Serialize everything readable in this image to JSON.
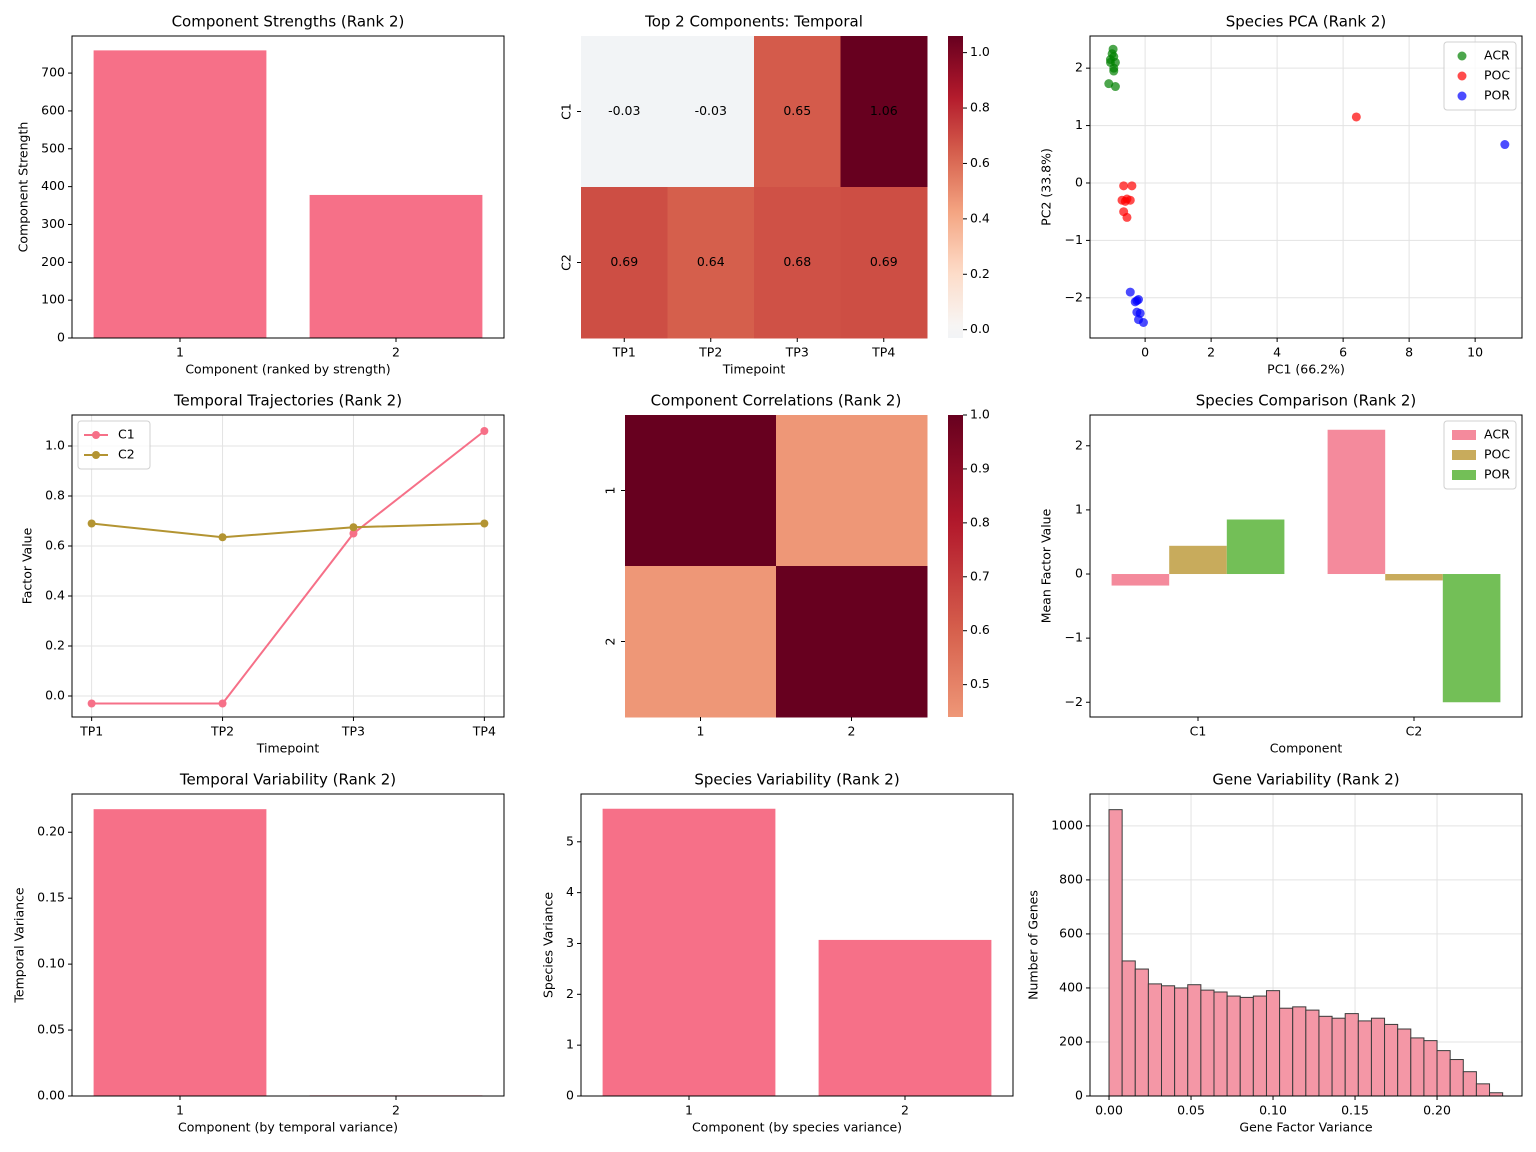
{
  "chart_data": [
    {
      "type": "bar",
      "title": "Component Strengths (Rank 2)",
      "xlabel": "Component (ranked by strength)",
      "ylabel": "Component Strength",
      "categories": [
        "1",
        "2"
      ],
      "values": [
        760,
        378
      ],
      "color": "#f67088",
      "ylim": [
        0,
        798
      ],
      "yticks": [
        0,
        100,
        200,
        300,
        400,
        500,
        600,
        700
      ],
      "grid": false
    },
    {
      "type": "heatmap",
      "title": "Top 2 Components: Temporal",
      "xlabel": "Timepoint",
      "rows": [
        "C1",
        "C2"
      ],
      "columns": [
        "TP1",
        "TP2",
        "TP3",
        "TP4"
      ],
      "values": [
        [
          -0.03,
          -0.03,
          0.65,
          1.06
        ],
        [
          0.69,
          0.64,
          0.68,
          0.69
        ]
      ],
      "clim": [
        -0.03,
        1.06
      ],
      "center": 0,
      "colormap": [
        "#053061",
        "#2166ac",
        "#4393c3",
        "#92c5de",
        "#d1e5f0",
        "#f7f7f7",
        "#fddbc7",
        "#f4a582",
        "#d6604d",
        "#b2182b",
        "#67001f"
      ],
      "cticks": [
        {
          "value": 0,
          "label": "0.0"
        },
        0.2,
        0.4,
        0.6,
        0.8,
        {
          "value": 1,
          "label": "1.0"
        }
      ],
      "annotate": true
    },
    {
      "type": "scatter",
      "title": "Species PCA (Rank 2)",
      "xlabel": "PC1 (66.2%)",
      "ylabel": "PC2 (33.8%)",
      "series": [
        {
          "name": "ACR",
          "color": "#008000",
          "x": [
            -0.97,
            -1.0,
            -0.95,
            -1.05,
            -0.9,
            -1.05,
            -0.95,
            -0.95,
            -1.1,
            -0.9
          ],
          "values": [
            2.33,
            2.25,
            2.2,
            2.15,
            2.1,
            2.1,
            2.0,
            1.95,
            1.73,
            1.68
          ]
        },
        {
          "name": "POC",
          "color": "#ff0000",
          "x": [
            6.4,
            -0.65,
            -0.4,
            -0.7,
            -0.55,
            -0.45,
            -0.6,
            -0.65,
            -0.55
          ],
          "values": [
            1.15,
            -0.05,
            -0.05,
            -0.3,
            -0.28,
            -0.3,
            -0.32,
            -0.5,
            -0.6
          ]
        },
        {
          "name": "POR",
          "color": "#0000ff",
          "x": [
            10.9,
            -0.45,
            -0.25,
            -0.3,
            -0.2,
            -0.25,
            -0.15,
            -0.2,
            -0.05
          ],
          "values": [
            0.67,
            -1.9,
            -2.05,
            -2.07,
            -2.03,
            -2.25,
            -2.27,
            -2.38,
            -2.43
          ]
        }
      ],
      "alpha": 0.7,
      "xlim": [
        -1.67,
        11.42
      ],
      "ylim": [
        -2.7,
        2.56
      ],
      "xticks": [
        0,
        2,
        4,
        6,
        8,
        10
      ],
      "yticks": [
        {
          "value": -2,
          "label": "−2"
        },
        {
          "value": -1,
          "label": "−1"
        },
        0,
        1,
        2
      ],
      "grid": true,
      "legend": "upper right"
    },
    {
      "type": "line",
      "title": "Temporal Trajectories (Rank 2)",
      "xlabel": "Timepoint",
      "ylabel": "Factor Value",
      "categories": [
        "TP1",
        "TP2",
        "TP3",
        "TP4"
      ],
      "series": [
        {
          "name": "C1",
          "color": "#f67088",
          "values": [
            -0.03,
            -0.03,
            0.65,
            1.06
          ]
        },
        {
          "name": "C2",
          "color": "#b39432",
          "values": [
            0.69,
            0.635,
            0.675,
            0.69
          ]
        }
      ],
      "ylim": [
        -0.084,
        1.124
      ],
      "yticks": [
        {
          "value": 0,
          "label": "0.0"
        },
        0.2,
        0.4,
        0.6,
        0.8,
        {
          "value": 1,
          "label": "1.0"
        }
      ],
      "grid": true,
      "legend": "upper left"
    },
    {
      "type": "heatmap",
      "title": "Component Correlations (Rank 2)",
      "rows": [
        "1",
        "2"
      ],
      "columns": [
        "1",
        "2"
      ],
      "values": [
        [
          1,
          0.44
        ],
        [
          0.44,
          1
        ]
      ],
      "clim": [
        0.44,
        1
      ],
      "center": 0,
      "colormap": [
        "#053061",
        "#2166ac",
        "#4393c3",
        "#92c5de",
        "#d1e5f0",
        "#f7f7f7",
        "#fddbc7",
        "#f4a582",
        "#d6604d",
        "#b2182b",
        "#67001f"
      ],
      "cticks": [
        0.5,
        0.6,
        0.7,
        0.8,
        0.9,
        {
          "value": 1,
          "label": "1.0"
        }
      ],
      "annotate": false
    },
    {
      "type": "bar",
      "title": "Species Comparison (Rank 2)",
      "xlabel": "Component",
      "ylabel": "Mean Factor Value",
      "categories": [
        "C1",
        "C2"
      ],
      "series": [
        {
          "name": "ACR",
          "color": "#f48a9c",
          "values": [
            -0.18,
            2.25
          ]
        },
        {
          "name": "POC",
          "color": "#c8ab5c",
          "values": [
            0.44,
            -0.1
          ]
        },
        {
          "name": "POR",
          "color": "#73bf57",
          "values": [
            0.85,
            -2.0
          ]
        }
      ],
      "ylim": [
        -2.23,
        2.48
      ],
      "yticks": [
        {
          "value": -2,
          "label": "−2"
        },
        {
          "value": -1,
          "label": "−1"
        },
        0,
        1,
        2
      ],
      "grid": false,
      "legend": "upper right"
    },
    {
      "type": "bar",
      "title": "Temporal Variability (Rank 2)",
      "xlabel": "Component (by temporal variance)",
      "ylabel": "Temporal Variance",
      "categories": [
        "1",
        "2"
      ],
      "values": [
        0.2175,
        0.0005
      ],
      "color": "#f67088",
      "ylim": [
        0,
        0.229
      ],
      "yticks": [
        {
          "value": 0,
          "label": "0.00"
        },
        0.05,
        {
          "value": 0.1,
          "label": "0.10"
        },
        0.15,
        {
          "value": 0.2,
          "label": "0.20"
        }
      ],
      "grid": false
    },
    {
      "type": "bar",
      "title": "Species Variability (Rank 2)",
      "xlabel": "Component (by species variance)",
      "ylabel": "Species Variance",
      "categories": [
        "1",
        "2"
      ],
      "values": [
        5.65,
        3.07
      ],
      "color": "#f67088",
      "ylim": [
        0,
        5.94
      ],
      "yticks": [
        0,
        1,
        2,
        3,
        4,
        5
      ],
      "grid": false
    },
    {
      "type": "histogram",
      "title": "Gene Variability (Rank 2)",
      "xlabel": "Gene Factor Variance",
      "ylabel": "Number of Genes",
      "bins": [
        0,
        0.008,
        0.016,
        0.024,
        0.032,
        0.04,
        0.048,
        0.056,
        0.064,
        0.072,
        0.08,
        0.088,
        0.096,
        0.104,
        0.112,
        0.12,
        0.128,
        0.136,
        0.144,
        0.152,
        0.16,
        0.168,
        0.176,
        0.184,
        0.192,
        0.2,
        0.208,
        0.216,
        0.224,
        0.232,
        0.24
      ],
      "values": [
        1060,
        500,
        470,
        415,
        408,
        400,
        412,
        392,
        385,
        370,
        365,
        370,
        390,
        325,
        330,
        318,
        295,
        288,
        305,
        278,
        288,
        265,
        248,
        215,
        205,
        168,
        135,
        90,
        45,
        12
      ],
      "color": "#f497a6",
      "edgecolor": "#3a3a3a",
      "xlim": [
        -0.0116,
        0.2518
      ],
      "ylim": [
        0,
        1118
      ],
      "xticks": [
        {
          "value": 0,
          "label": "0.00"
        },
        0.05,
        {
          "value": 0.1,
          "label": "0.10"
        },
        0.15,
        {
          "value": 0.2,
          "label": "0.20"
        }
      ],
      "yticks": [
        0,
        200,
        400,
        600,
        800,
        1000
      ],
      "grid": true
    }
  ]
}
